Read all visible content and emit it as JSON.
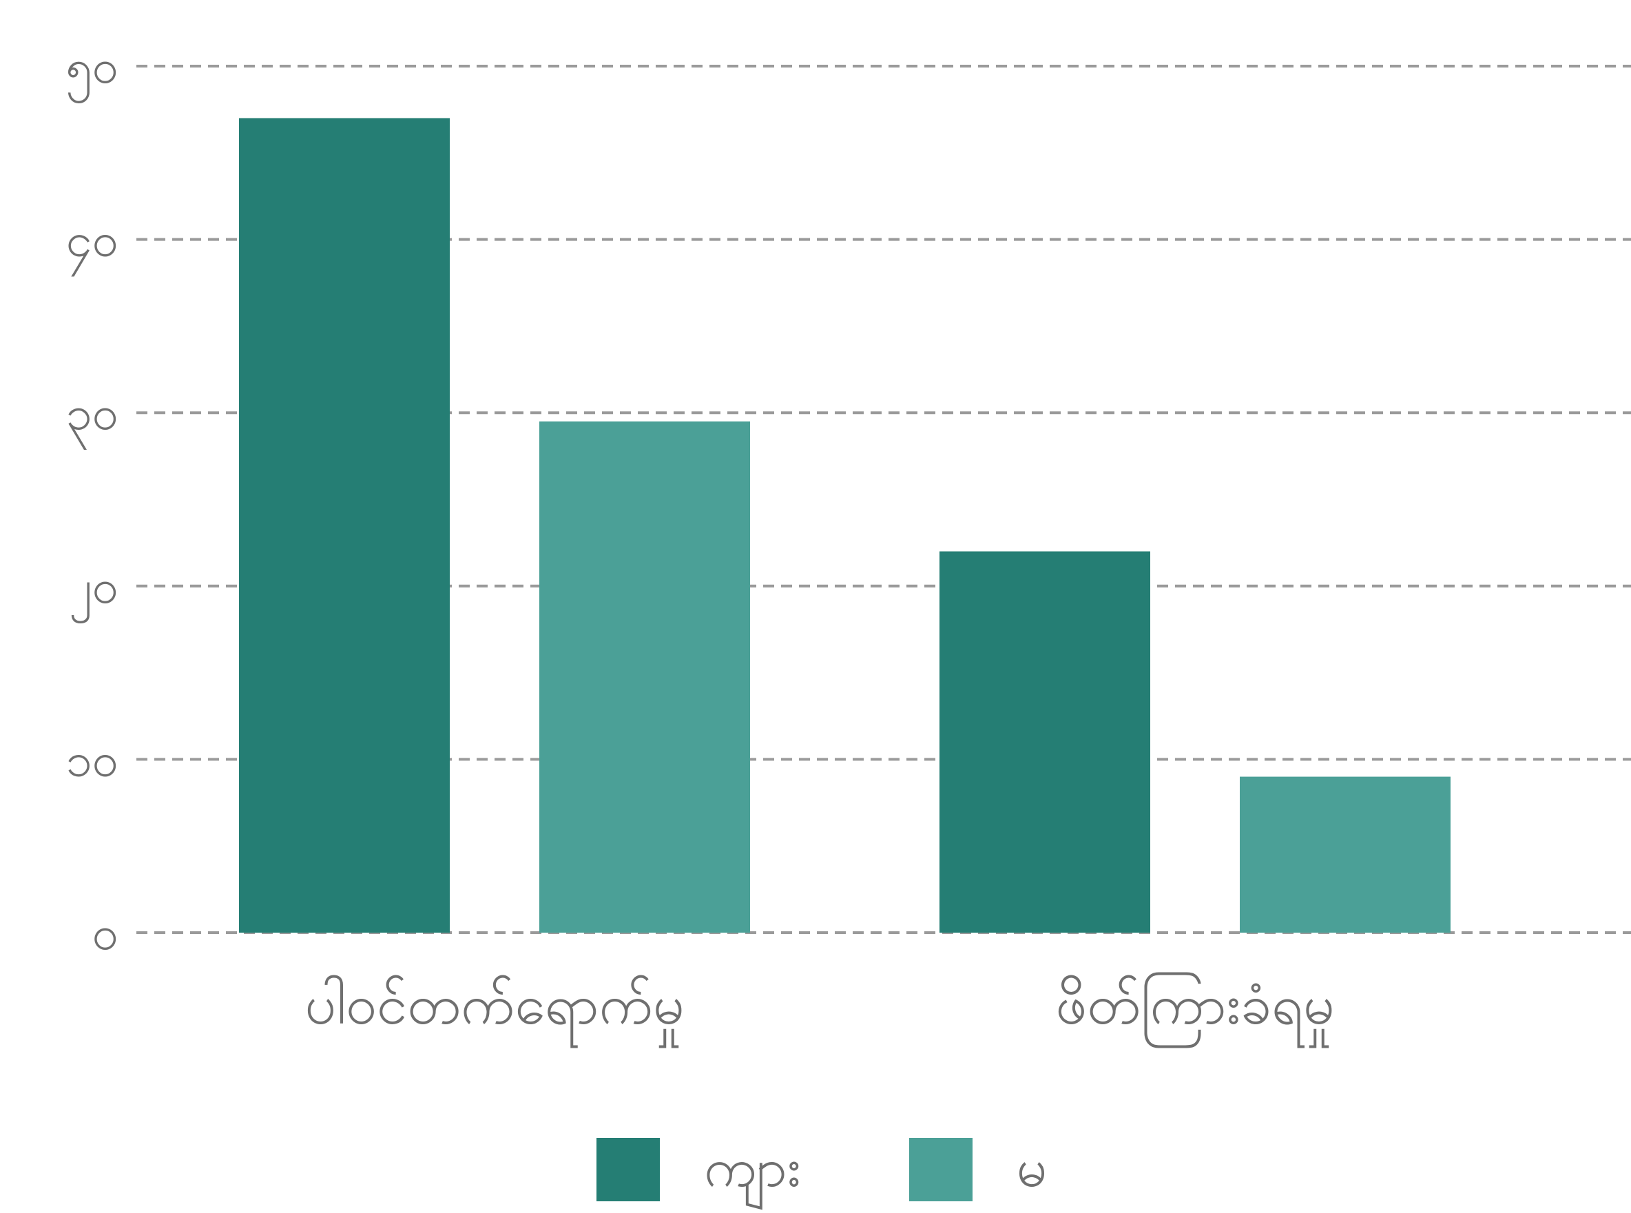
{
  "chart_data": {
    "type": "bar",
    "categories": [
      "ပါဝင်တက်ရောက်မှု",
      "ဖိတ်ကြားခံရမှု"
    ],
    "series": [
      {
        "name": "ကျား",
        "values": [
          47,
          22
        ],
        "color": "#257e74"
      },
      {
        "name": "မ",
        "values": [
          29.5,
          9
        ],
        "color": "#4ba097"
      }
    ],
    "y_ticks": [
      {
        "value": 0,
        "label": "၀"
      },
      {
        "value": 10,
        "label": "၁၀"
      },
      {
        "value": 20,
        "label": "၂၀"
      },
      {
        "value": 30,
        "label": "၃၀"
      },
      {
        "value": 40,
        "label": "၄၀"
      },
      {
        "value": 50,
        "label": "၅၀"
      }
    ],
    "ylim": [
      0,
      50
    ],
    "grid": true,
    "grid_style": "dashed",
    "legend_position": "bottom-center",
    "title": "",
    "xlabel": "",
    "ylabel": ""
  }
}
